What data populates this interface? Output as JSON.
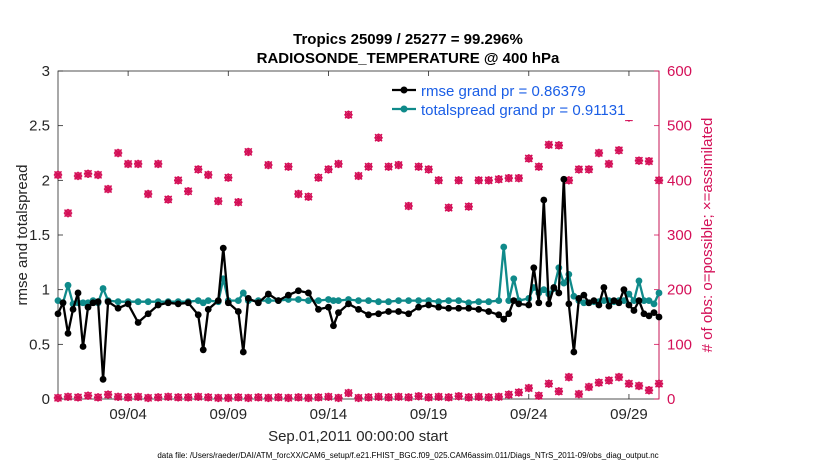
{
  "chart_data": {
    "type": "line",
    "title": "Tropics 25099 / 25277 = 99.296%",
    "subtitle": "RADIOSONDE_TEMPERATURE @ 400 hPa",
    "xlabel": "Sep.01,2011 00:00:00 start",
    "ylabel": "rmse and totalspread",
    "y2label": "# of obs: o=possible; ×=assimilated",
    "xlim": [
      0.5,
      30.5
    ],
    "ylim": [
      0,
      3
    ],
    "y2lim": [
      0,
      600
    ],
    "x_ticks": [
      {
        "value": 4,
        "label": "09/04"
      },
      {
        "value": 9,
        "label": "09/09"
      },
      {
        "value": 14,
        "label": "09/14"
      },
      {
        "value": 19,
        "label": "09/19"
      },
      {
        "value": 24,
        "label": "09/24"
      },
      {
        "value": 29,
        "label": "09/29"
      }
    ],
    "y_ticks": [
      "0",
      "0.5",
      "1",
      "1.5",
      "2",
      "2.5",
      "3"
    ],
    "y2_ticks": [
      "0",
      "100",
      "200",
      "300",
      "400",
      "500",
      "600"
    ],
    "x": [
      0.5,
      0.75,
      1,
      1.25,
      1.5,
      1.75,
      2,
      2.25,
      2.5,
      2.75,
      3,
      3.5,
      4,
      4.5,
      5,
      5.5,
      6,
      6.5,
      7,
      7.5,
      7.75,
      8,
      8.5,
      8.75,
      9,
      9.5,
      9.75,
      10,
      10.5,
      11,
      11.5,
      12,
      12.5,
      13,
      13.5,
      14,
      14.25,
      14.5,
      15,
      15.5,
      16,
      16.5,
      17,
      17.5,
      18,
      18.5,
      19,
      19.5,
      20,
      20.5,
      21,
      21.5,
      22,
      22.5,
      22.75,
      23,
      23.25,
      23.5,
      24,
      24.25,
      24.5,
      24.75,
      25,
      25.25,
      25.5,
      25.75,
      26,
      26.25,
      26.5,
      26.75,
      27,
      27.25,
      27.5,
      27.75,
      28,
      28.25,
      28.5,
      28.75,
      29,
      29.25,
      29.5,
      29.75,
      30,
      30.25,
      30.5
    ],
    "series": [
      {
        "name": "rmse grand pr = 0.86379",
        "color": "#000000",
        "values": [
          0.78,
          0.88,
          0.6,
          0.82,
          0.97,
          0.48,
          0.84,
          0.88,
          0.89,
          0.18,
          0.89,
          0.83,
          0.87,
          0.7,
          0.78,
          0.86,
          0.88,
          0.87,
          0.88,
          0.77,
          0.45,
          0.82,
          0.9,
          1.38,
          0.88,
          0.8,
          0.43,
          0.92,
          0.88,
          0.96,
          0.9,
          0.95,
          0.99,
          0.97,
          0.82,
          0.84,
          0.67,
          0.79,
          0.87,
          0.82,
          0.77,
          0.78,
          0.8,
          0.8,
          0.78,
          0.84,
          0.86,
          0.84,
          0.83,
          0.83,
          0.83,
          0.82,
          0.8,
          0.77,
          0.73,
          0.78,
          0.9,
          0.87,
          0.86,
          1.2,
          0.88,
          1.82,
          0.87,
          1.02,
          0.97,
          2.01,
          0.87,
          0.43,
          0.92,
          0.95,
          0.88,
          0.9,
          0.86,
          1.02,
          0.85,
          0.9,
          0.88,
          1.0,
          0.86,
          0.81,
          0.9,
          0.78,
          0.76,
          0.79,
          0.75
        ],
        "marker": "dot"
      },
      {
        "name": "totalspread grand pr = 0.91131",
        "color": "#0f8a8a",
        "values": [
          0.9,
          0.88,
          1.04,
          0.87,
          0.88,
          0.88,
          0.88,
          0.9,
          0.88,
          1.01,
          0.9,
          0.89,
          0.89,
          0.89,
          0.89,
          0.89,
          0.89,
          0.89,
          0.89,
          0.9,
          0.88,
          0.9,
          0.89,
          1.1,
          0.9,
          0.9,
          0.97,
          0.9,
          0.9,
          0.9,
          0.9,
          0.91,
          0.91,
          0.9,
          0.9,
          0.91,
          0.9,
          0.9,
          0.91,
          0.9,
          0.9,
          0.89,
          0.89,
          0.9,
          0.9,
          0.9,
          0.9,
          0.89,
          0.9,
          0.9,
          0.88,
          0.89,
          0.89,
          0.9,
          1.39,
          0.9,
          1.1,
          0.9,
          0.92,
          1.02,
          0.97,
          1.0,
          0.96,
          1.01,
          1.2,
          1.06,
          1.14,
          0.94,
          0.9,
          0.88,
          0.88,
          0.89,
          0.89,
          0.9,
          0.9,
          0.89,
          0.9,
          0.9,
          0.96,
          0.9,
          1.08,
          0.9,
          0.9,
          0.87,
          0.97
        ],
        "marker": "dot"
      }
    ],
    "obs_possible": {
      "color": "#d40f57",
      "x": [
        0.5,
        1,
        1.5,
        2,
        2.5,
        3,
        3.5,
        4,
        4.5,
        5,
        5.5,
        6,
        6.5,
        7,
        7.5,
        8,
        8.5,
        9,
        9.5,
        10,
        11,
        12,
        12.5,
        13,
        13.5,
        14,
        14.5,
        15,
        15.5,
        16,
        16.5,
        17,
        17.5,
        18,
        18.5,
        19,
        19.5,
        20,
        20.5,
        21,
        21.5,
        22,
        22.5,
        23,
        23.5,
        24,
        24.5,
        25,
        25.5,
        26,
        26.5,
        27,
        27.5,
        28,
        28.5,
        29,
        29.5,
        30,
        30.5
      ],
      "values": [
        410,
        340,
        408,
        412,
        410,
        384,
        450,
        430,
        430,
        375,
        430,
        365,
        400,
        380,
        420,
        410,
        362,
        405,
        360,
        452,
        428,
        425,
        375,
        370,
        405,
        420,
        430,
        520,
        408,
        425,
        478,
        425,
        428,
        353,
        425,
        420,
        400,
        350,
        400,
        352,
        400,
        400,
        402,
        404,
        404,
        440,
        425,
        465,
        464,
        400,
        420,
        420,
        450,
        430,
        455,
        515,
        436,
        435,
        400
      ],
      "zeros": [
        0.5,
        1,
        1.5,
        2,
        2.5,
        3,
        3.5,
        4,
        4.5,
        5,
        5.5,
        6,
        6.5,
        7,
        7.5,
        8,
        8.5,
        9,
        9.5,
        10,
        10.5,
        11,
        11.5,
        12,
        12.5,
        13,
        13.5,
        14,
        14.5,
        15,
        15.5,
        16,
        16.5,
        17,
        17.5,
        18,
        18.5,
        19,
        19.5,
        20,
        20.5,
        21,
        21.5,
        22,
        22.5,
        23,
        23.5,
        24,
        24.5,
        25,
        25.5,
        26,
        26.5,
        27,
        27.5,
        28,
        28.5,
        29,
        29.5,
        30,
        30.5
      ],
      "zero_values": [
        2,
        4,
        3,
        6,
        3,
        8,
        4,
        3,
        4,
        2,
        3,
        4,
        3,
        3,
        4,
        3,
        2,
        2,
        3,
        2,
        3,
        2,
        3,
        2,
        3,
        2,
        3,
        4,
        2,
        11,
        2,
        3,
        4,
        3,
        4,
        3,
        5,
        3,
        4,
        3,
        5,
        3,
        4,
        3,
        4,
        8,
        12,
        20,
        6,
        28,
        14,
        40,
        9,
        22,
        30,
        34,
        40,
        28,
        24,
        16,
        28
      ]
    }
  },
  "footer": {
    "datafile": "data file: /Users/raeder/DAI/ATM_forcXX/CAM6_setup/f.e21.FHIST_BGC.f09_025.CAM6assim.011/Diags_NTrS_2011-09/obs_diag_output.nc"
  }
}
